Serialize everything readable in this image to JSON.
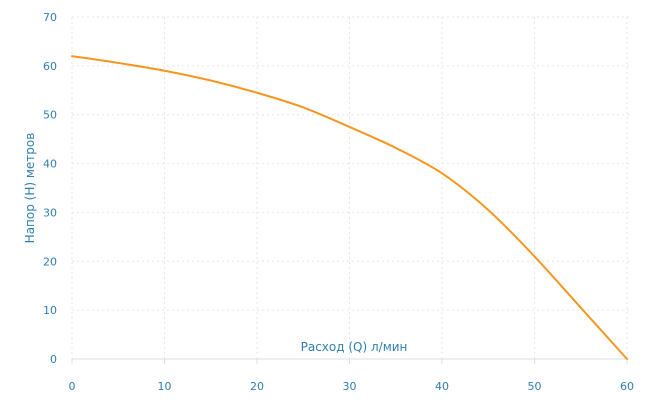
{
  "chart_data": {
    "type": "line",
    "title": "",
    "xlabel": "Расход (Q) л/мин",
    "ylabel": "Напор (H) метров",
    "xlim": [
      0,
      60
    ],
    "ylim": [
      0,
      70
    ],
    "xticks": [
      0,
      10,
      20,
      30,
      40,
      50,
      60
    ],
    "yticks": [
      0,
      10,
      20,
      30,
      40,
      50,
      60,
      70
    ],
    "grid": true,
    "colors": {
      "line": "#f5961f",
      "ticks": "#2f7fb0",
      "grid": "#e3e6ea"
    },
    "series": [
      {
        "x": [
          0,
          5,
          10,
          15,
          20,
          25,
          30,
          35,
          40,
          45,
          50,
          55,
          60
        ],
        "y": [
          62,
          60.6,
          59,
          57,
          54.5,
          51.5,
          47.5,
          43.2,
          38,
          30.5,
          21,
          10.5,
          0
        ]
      }
    ]
  }
}
